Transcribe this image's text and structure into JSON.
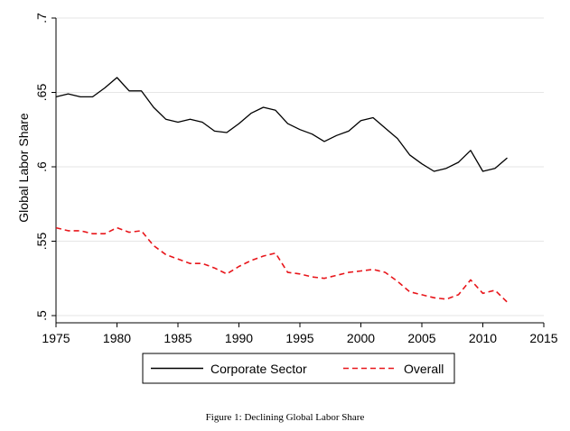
{
  "chart_data": {
    "type": "line",
    "title": "",
    "xlabel": "",
    "ylabel": "Global Labor Share",
    "xlim": [
      1975,
      2015
    ],
    "ylim": [
      0.5,
      0.7
    ],
    "x_ticks": [
      1975,
      1980,
      1985,
      1990,
      1995,
      2000,
      2005,
      2010,
      2015
    ],
    "x_tick_labels": [
      "1975",
      "1980",
      "1985",
      "1990",
      "1995",
      "2000",
      "2005",
      "2010",
      "2015"
    ],
    "y_ticks": [
      0.5,
      0.55,
      0.6,
      0.65,
      0.7
    ],
    "y_tick_labels": [
      ".5",
      ".55",
      ".6",
      ".65",
      ".7"
    ],
    "grid": true,
    "legend_position": "bottom",
    "x": [
      1975,
      1976,
      1977,
      1978,
      1979,
      1980,
      1981,
      1982,
      1983,
      1984,
      1985,
      1986,
      1987,
      1988,
      1989,
      1990,
      1991,
      1992,
      1993,
      1994,
      1995,
      1996,
      1997,
      1998,
      1999,
      2000,
      2001,
      2002,
      2003,
      2004,
      2005,
      2006,
      2007,
      2008,
      2009,
      2010,
      2011,
      2012
    ],
    "series": [
      {
        "name": "Corporate Sector",
        "color": "#000000",
        "dash": "solid",
        "values": [
          0.647,
          0.649,
          0.647,
          0.647,
          0.653,
          0.66,
          0.651,
          0.651,
          0.64,
          0.632,
          0.63,
          0.632,
          0.63,
          0.624,
          0.623,
          0.629,
          0.636,
          0.64,
          0.638,
          0.629,
          0.625,
          0.622,
          0.617,
          0.621,
          0.624,
          0.631,
          0.633,
          0.626,
          0.619,
          0.608,
          0.602,
          0.597,
          0.599,
          0.603,
          0.611,
          0.597,
          0.599,
          0.606
        ]
      },
      {
        "name": "Overall",
        "color": "#e8161b",
        "dash": "dashed",
        "values": [
          0.559,
          0.557,
          0.557,
          0.555,
          0.555,
          0.559,
          0.556,
          0.557,
          0.547,
          0.541,
          0.538,
          0.535,
          0.535,
          0.532,
          0.528,
          0.533,
          0.537,
          0.54,
          0.542,
          0.529,
          0.528,
          0.526,
          0.525,
          0.527,
          0.529,
          0.53,
          0.531,
          0.529,
          0.523,
          0.516,
          0.514,
          0.512,
          0.511,
          0.514,
          0.524,
          0.515,
          0.517,
          0.509
        ]
      }
    ]
  },
  "caption": "Figure 1: Declining Global Labor Share"
}
